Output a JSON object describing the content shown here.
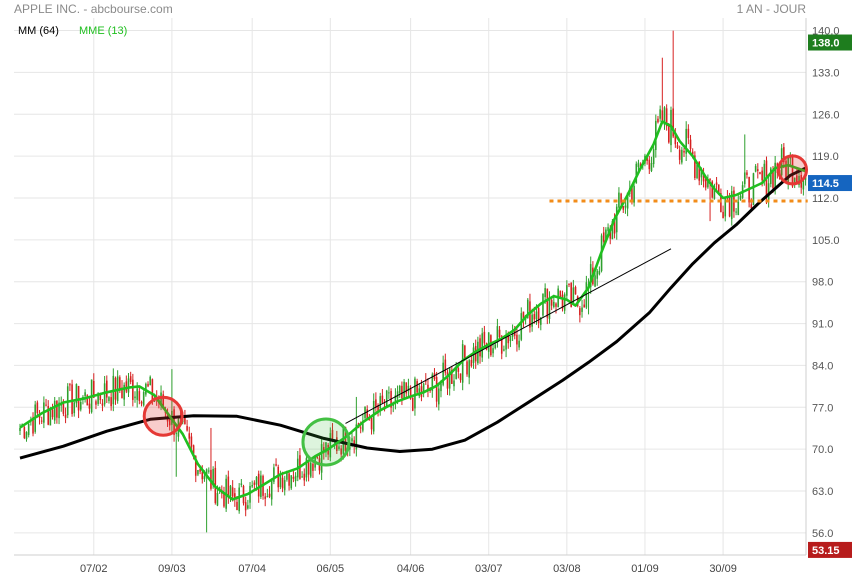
{
  "header": {
    "title": "APPLE INC. - abcbourse.com",
    "period": "1 AN - JOUR"
  },
  "legend": {
    "mm_label": "MM (64)",
    "mme_label": "MME (13)"
  },
  "colors": {
    "mme": "#1fbf1f",
    "mm": "#000000",
    "candle_up": "#2ea02e",
    "candle_down": "#d62020",
    "badge_high": "#1e7d1e",
    "badge_last": "#1565c0",
    "badge_low": "#b71c1c",
    "support": "#f28c1a",
    "circle_sell": "#e53935",
    "circle_buy": "#43c043"
  },
  "chart_data": {
    "type": "line",
    "ylim": [
      52.3,
      142.1
    ],
    "yticks": [
      56,
      63,
      70,
      77,
      84,
      91,
      98,
      105,
      112,
      119,
      126,
      133,
      140
    ],
    "xtick_labels": [
      "07/02",
      "09/03",
      "07/04",
      "06/05",
      "04/06",
      "03/07",
      "03/08",
      "01/09",
      "30/09"
    ],
    "badges": {
      "high": 138.0,
      "last": 114.5,
      "low": 53.15
    },
    "ma64": [
      [
        0,
        68.5
      ],
      [
        20,
        70.5
      ],
      [
        40,
        73.0
      ],
      [
        60,
        75.0
      ],
      [
        80,
        75.6
      ],
      [
        100,
        75.5
      ],
      [
        120,
        74.0
      ],
      [
        140,
        71.8
      ],
      [
        160,
        70.2
      ],
      [
        175,
        69.6
      ],
      [
        190,
        70.0
      ],
      [
        205,
        71.5
      ],
      [
        220,
        74.5
      ],
      [
        235,
        78.0
      ],
      [
        250,
        81.5
      ],
      [
        262,
        84.5
      ],
      [
        275,
        88.0
      ],
      [
        290,
        92.8
      ],
      [
        300,
        97.0
      ],
      [
        310,
        101.0
      ],
      [
        320,
        104.5
      ],
      [
        330,
        107.5
      ],
      [
        340,
        111.0
      ],
      [
        350,
        114.2
      ],
      [
        355,
        115.8
      ],
      [
        362,
        117.0
      ]
    ],
    "ema13": [
      [
        0,
        73.6
      ],
      [
        10,
        76.0
      ],
      [
        20,
        77.8
      ],
      [
        30,
        78.5
      ],
      [
        40,
        79.5
      ],
      [
        50,
        80.3
      ],
      [
        55,
        80.5
      ],
      [
        62,
        79.0
      ],
      [
        68,
        76.0
      ],
      [
        75,
        72.5
      ],
      [
        82,
        67.5
      ],
      [
        90,
        63.7
      ],
      [
        98,
        61.6
      ],
      [
        105,
        62.5
      ],
      [
        112,
        64.0
      ],
      [
        120,
        65.8
      ],
      [
        128,
        66.8
      ],
      [
        136,
        68.8
      ],
      [
        142,
        70.0
      ],
      [
        150,
        72.0
      ],
      [
        158,
        74.5
      ],
      [
        166,
        76.5
      ],
      [
        174,
        78.0
      ],
      [
        180,
        78.8
      ],
      [
        186,
        79.5
      ],
      [
        192,
        80.6
      ],
      [
        198,
        82.5
      ],
      [
        204,
        84.8
      ],
      [
        210,
        86.3
      ],
      [
        216,
        87.5
      ],
      [
        222,
        88.5
      ],
      [
        228,
        90.0
      ],
      [
        234,
        92.5
      ],
      [
        240,
        94.3
      ],
      [
        246,
        95.6
      ],
      [
        252,
        95.0
      ],
      [
        256,
        94.0
      ],
      [
        262,
        97.0
      ],
      [
        268,
        103.0
      ],
      [
        274,
        108.5
      ],
      [
        280,
        112.5
      ],
      [
        286,
        117.0
      ],
      [
        292,
        121.0
      ],
      [
        296,
        124.8
      ],
      [
        300,
        124.0
      ],
      [
        304,
        121.5
      ],
      [
        310,
        119.0
      ],
      [
        316,
        115.5
      ],
      [
        320,
        113.5
      ],
      [
        324,
        112.0
      ],
      [
        330,
        112.5
      ],
      [
        336,
        113.5
      ],
      [
        342,
        114.5
      ],
      [
        348,
        117.0
      ],
      [
        354,
        117.5
      ],
      [
        358,
        117.0
      ],
      [
        362,
        116.5
      ]
    ],
    "resistance_line": [
      [
        150,
        74.3
      ],
      [
        300,
        103.5
      ]
    ],
    "support_line": {
      "level": 111.5,
      "x_start": 244,
      "x_end": 363
    },
    "circles": [
      {
        "type": "sell",
        "x": 66,
        "y": 75.5
      },
      {
        "type": "buy",
        "x": 141,
        "y": 71.2
      },
      {
        "type": "sell",
        "x": 356,
        "y": 116.7
      }
    ]
  }
}
